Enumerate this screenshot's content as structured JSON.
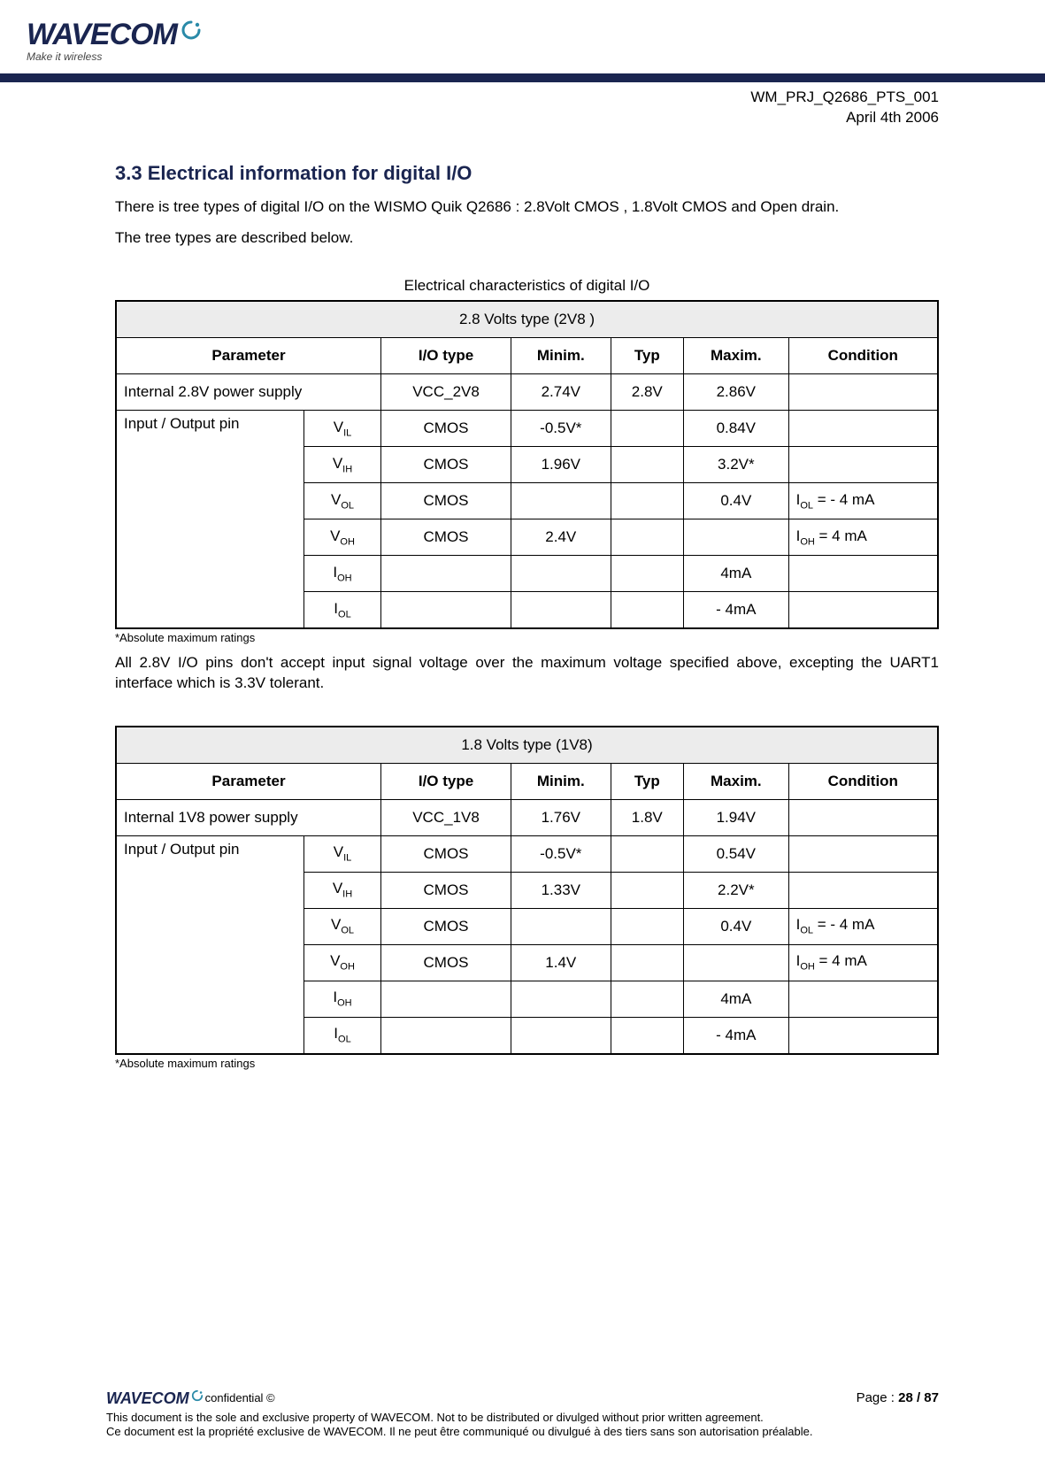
{
  "header": {
    "logo_text": "WAVECOM",
    "logo_tag": "Make it wireless",
    "doc_id": "WM_PRJ_Q2686_PTS_001",
    "doc_date": "April 4th 2006"
  },
  "section": {
    "number_title": "3.3 Electrical information for digital I/O",
    "p1": "There is tree types of digital I/O on the WISMO Quik Q2686 : 2.8Volt CMOS , 1.8Volt CMOS and Open drain.",
    "p2": "The tree types are described below.",
    "table_caption": "Electrical characteristics of digital I/O",
    "tolerance_note": "All 2.8V I/O pins don't accept input signal voltage over the maximum voltage specified above, excepting the UART1 interface which is 3.3V tolerant.",
    "footnote": "*Absolute maximum ratings"
  },
  "table2v8": {
    "title_row": "2.8 Volts type (2V8 )",
    "columns": [
      "Parameter",
      "I/O type",
      "Minim.",
      "Typ",
      "Maxim.",
      "Condition"
    ],
    "supply_row": {
      "param": "Internal 2.8V power supply",
      "io": "VCC_2V8",
      "min": "2.74V",
      "typ": "2.8V",
      "max": "2.86V",
      "cond": ""
    },
    "io_label": "Input / Output pin",
    "rows": [
      {
        "sym": "V",
        "sub": "IL",
        "io": "CMOS",
        "min": "-0.5V*",
        "typ": "",
        "max": "0.84V",
        "cond": ""
      },
      {
        "sym": "V",
        "sub": "IH",
        "io": "CMOS",
        "min": "1.96V",
        "typ": "",
        "max": "3.2V*",
        "cond": ""
      },
      {
        "sym": "V",
        "sub": "OL",
        "io": "CMOS",
        "min": "",
        "typ": "",
        "max": "0.4V",
        "cond": "I<sub class=\"sub\">OL</sub> = - 4 mA"
      },
      {
        "sym": "V",
        "sub": "OH",
        "io": "CMOS",
        "min": "2.4V",
        "typ": "",
        "max": "",
        "cond": "I<sub class=\"sub\">OH</sub> = 4 mA"
      },
      {
        "sym": "I",
        "sub": "OH",
        "io": "",
        "min": "",
        "typ": "",
        "max": "4mA",
        "cond": ""
      },
      {
        "sym": "I",
        "sub": "OL",
        "io": "",
        "min": "",
        "typ": "",
        "max": "- 4mA",
        "cond": ""
      }
    ]
  },
  "table1v8": {
    "title_row": "1.8 Volts type (1V8)",
    "columns": [
      "Parameter",
      "I/O type",
      "Minim.",
      "Typ",
      "Maxim.",
      "Condition"
    ],
    "supply_row": {
      "param": "Internal 1V8 power supply",
      "io": "VCC_1V8",
      "min": "1.76V",
      "typ": "1.8V",
      "max": "1.94V",
      "cond": ""
    },
    "io_label": "Input / Output pin",
    "rows": [
      {
        "sym": "V",
        "sub": "IL",
        "io": "CMOS",
        "min": "-0.5V*",
        "typ": "",
        "max": "0.54V",
        "cond": ""
      },
      {
        "sym": "V",
        "sub": "IH",
        "io": "CMOS",
        "min": "1.33V",
        "typ": "",
        "max": "2.2V*",
        "cond": ""
      },
      {
        "sym": "V",
        "sub": "OL",
        "io": "CMOS",
        "min": "",
        "typ": "",
        "max": "0.4V",
        "cond": "I<sub class=\"sub\">OL</sub> = - 4 mA"
      },
      {
        "sym": "V",
        "sub": "OH",
        "io": "CMOS",
        "min": "1.4V",
        "typ": "",
        "max": "",
        "cond": "I<sub class=\"sub\">OH</sub> = 4 mA"
      },
      {
        "sym": "I",
        "sub": "OH",
        "io": "",
        "min": "",
        "typ": "",
        "max": "4mA",
        "cond": ""
      },
      {
        "sym": "I",
        "sub": "OL",
        "io": "",
        "min": "",
        "typ": "",
        "max": "- 4mA",
        "cond": ""
      }
    ]
  },
  "footer": {
    "logo_text": "WAVECOM",
    "conf": "confidential ©",
    "page_label": "Page : ",
    "page_num": "28 / 87",
    "line1": "This document is the sole and exclusive property of WAVECOM. Not to be distributed or divulged without prior written agreement.",
    "line2": "Ce document est la propriété exclusive de WAVECOM. Il ne peut être communiqué ou divulgué à des tiers sans son autorisation préalable."
  },
  "colors": {
    "brand_navy": "#1a2550",
    "header_grey": "#ececec"
  }
}
